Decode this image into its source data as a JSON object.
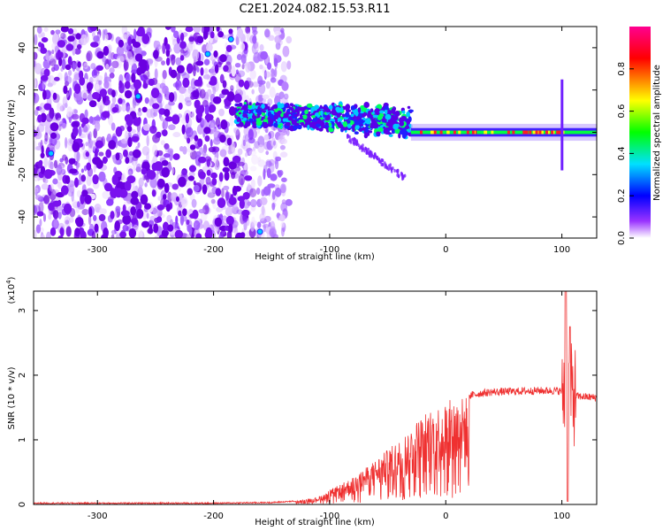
{
  "title": "C2E1.2024.082.15.53.R11",
  "chart_data": [
    {
      "type": "heatmap",
      "xlabel": "Height of straight line (km)",
      "ylabel": "Frequency (Hz)",
      "xlim": [
        -355,
        130
      ],
      "ylim": [
        -50,
        50
      ],
      "x_ticks": [
        -300,
        -200,
        -100,
        0,
        100
      ],
      "y_ticks": [
        -40,
        -20,
        0,
        20,
        40
      ],
      "colorbar": {
        "label": "Normalized spectral amplitude",
        "range": [
          0,
          1
        ],
        "ticks": [
          "0.0",
          "0.2",
          "0.4",
          "0.6",
          "0.8"
        ],
        "colormap": "rainbow",
        "colors": [
          "#ffffff",
          "#7b00ff",
          "#0000ff",
          "#00ffff",
          "#00ff00",
          "#ffff00",
          "#ff0000",
          "#ff0090"
        ]
      },
      "features": [
        {
          "name": "scattered noise region",
          "x_range": [
            -355,
            -135
          ],
          "f_range": [
            -50,
            50
          ]
        },
        {
          "name": "carrier band",
          "x_start": -180,
          "f_start": 9,
          "x_end": 130,
          "f_end": 0
        },
        {
          "name": "narrow carrier line",
          "x_range": [
            -30,
            130
          ],
          "f": 0
        }
      ]
    },
    {
      "type": "line",
      "xlabel": "Height of straight line (km)",
      "ylabel": "SNR (10 * v/v)",
      "y_multiplier": "(x10",
      "y_exponent": "4",
      "y_multiplier_close": ")",
      "xlim": [
        -355,
        130
      ],
      "ylim": [
        0,
        3.3
      ],
      "x_ticks": [
        -300,
        -200,
        -100,
        0,
        100
      ],
      "y_ticks": [
        0,
        1,
        2,
        3
      ],
      "line_color": "#ef3030",
      "envelope": [
        [
          -355,
          0.02
        ],
        [
          -200,
          0.02
        ],
        [
          -150,
          0.03
        ],
        [
          -130,
          0.05
        ],
        [
          -110,
          0.12
        ],
        [
          -100,
          0.22
        ],
        [
          -90,
          0.32
        ],
        [
          -80,
          0.42
        ],
        [
          -70,
          0.55
        ],
        [
          -60,
          0.7
        ],
        [
          -50,
          0.85
        ],
        [
          -40,
          1.0
        ],
        [
          -30,
          1.2
        ],
        [
          -20,
          1.4
        ],
        [
          -10,
          1.5
        ],
        [
          0,
          1.6
        ],
        [
          10,
          1.65
        ],
        [
          20,
          1.68
        ],
        [
          30,
          1.72
        ],
        [
          40,
          1.74
        ],
        [
          60,
          1.75
        ],
        [
          80,
          1.76
        ],
        [
          95,
          1.76
        ],
        [
          100,
          1.75
        ],
        [
          110,
          1.68
        ],
        [
          130,
          1.65
        ]
      ],
      "spikes": [
        {
          "x": 103,
          "y": 3.3
        },
        {
          "x": 105,
          "y": 0.05
        },
        {
          "x": 107,
          "y": 2.75
        }
      ]
    }
  ]
}
